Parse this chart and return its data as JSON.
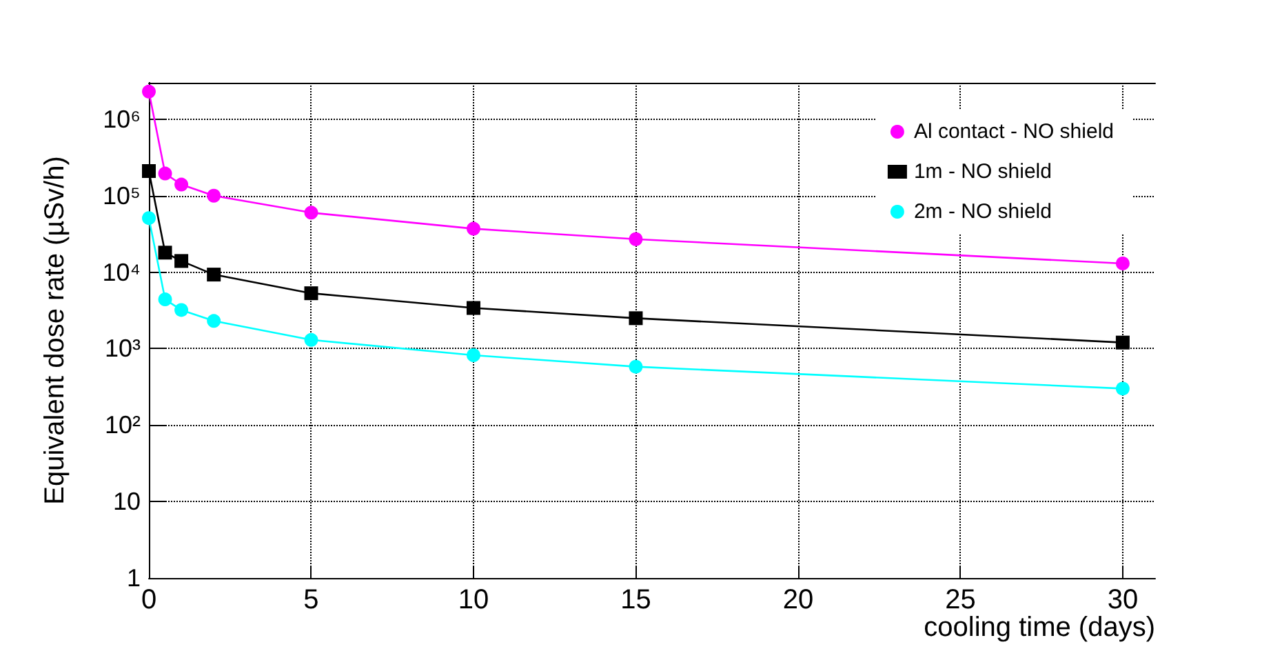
{
  "chart_data": {
    "type": "line",
    "xlabel": "cooling time (days)",
    "ylabel": "Equivalent dose rate (µSv/h)",
    "x": [
      0,
      0.5,
      1,
      2,
      5,
      10,
      15,
      30
    ],
    "series": [
      {
        "name": "Al contact - NO shield",
        "color": "#ff00ff",
        "marker": "circle",
        "values": [
          2300000,
          195000,
          140000,
          100000,
          60000,
          37000,
          27000,
          13000
        ]
      },
      {
        "name": "1m - NO shield",
        "color": "#000000",
        "marker": "square",
        "values": [
          210000,
          18000,
          14000,
          9300,
          5300,
          3400,
          2500,
          1200
        ]
      },
      {
        "name": "2m - NO shield",
        "color": "#00ffff",
        "marker": "circle",
        "values": [
          51000,
          4400,
          3200,
          2300,
          1300,
          820,
          580,
          300
        ]
      }
    ],
    "log": "y",
    "xlim": [
      0,
      31
    ],
    "xticks": [
      0,
      5,
      10,
      15,
      20,
      25,
      30
    ],
    "ylim": [
      1,
      3000000
    ],
    "yticks": [
      1,
      10,
      {
        "value": 100,
        "label": "10²"
      },
      {
        "value": 1000,
        "label": "10³"
      },
      {
        "value": 10000,
        "label": "10⁴"
      },
      {
        "value": 100000,
        "label": "10⁵"
      },
      {
        "value": 1000000,
        "label": "10⁶"
      }
    ],
    "grid": true,
    "legend": "top right",
    "line_style": "solid"
  }
}
